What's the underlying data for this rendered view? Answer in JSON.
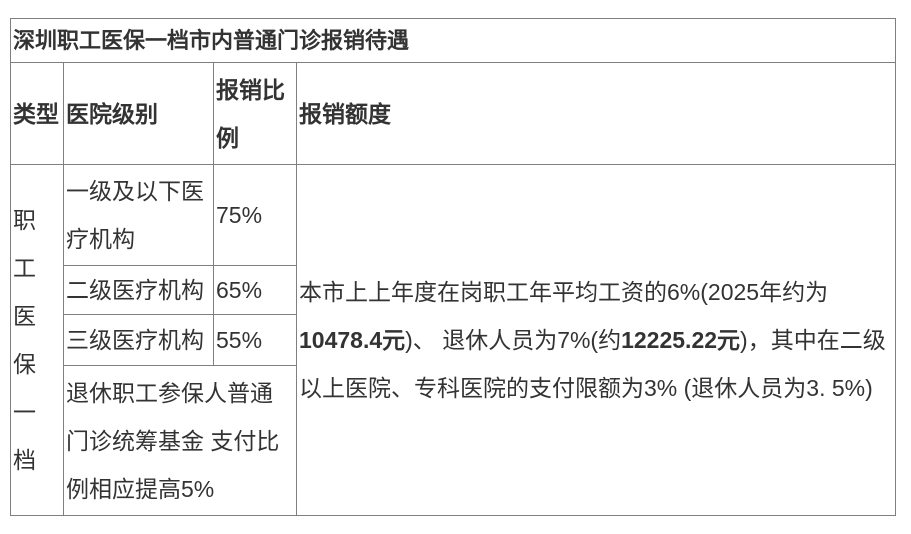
{
  "colors": {
    "border": "#7f7f7f",
    "text": "#333333",
    "background": "#ffffff"
  },
  "table": {
    "title": "深圳职工医保一档市内普通门诊报销待遇",
    "headers": {
      "type": "类型",
      "hospital_level": "医院级别",
      "ratio": "报销比例",
      "quota": "报销额度"
    },
    "type_group": "职工医保一档",
    "rows": [
      {
        "level": "一级及以下医疗机构",
        "ratio": "75%"
      },
      {
        "level": "二级医疗机构",
        "ratio": "65%"
      },
      {
        "level": "三级医疗机构",
        "ratio": "55%"
      }
    ],
    "retiree_note": "退休职工参保人普通门诊统筹基金 支付比例相应提高5%",
    "quota_segments": [
      {
        "text": "本市上上年度在岗职工年平均工资的6%(2025年约为",
        "bold": false
      },
      {
        "text": "10478.4元",
        "bold": true
      },
      {
        "text": ")、 退休人员为7%(约",
        "bold": false
      },
      {
        "text": "12225.22元",
        "bold": true
      },
      {
        "text": ")，其中在二级以上医院、专科医院的支付限额为3% (退休人员为3. 5%)",
        "bold": false
      }
    ]
  }
}
